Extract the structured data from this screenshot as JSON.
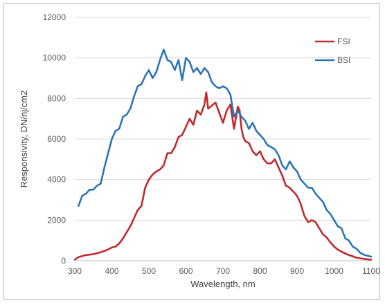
{
  "chart_data": {
    "type": "line",
    "title": "",
    "xlabel": "Wavelength, nm",
    "ylabel": "Responsivity, DN/nj/cm2",
    "xlim": [
      300,
      1100
    ],
    "ylim": [
      0,
      12000
    ],
    "xticks": [
      300,
      400,
      500,
      600,
      700,
      800,
      900,
      1000,
      1100
    ],
    "yticks": [
      0,
      2000,
      4000,
      6000,
      8000,
      10000,
      12000
    ],
    "grid": "horizontal",
    "legend_position": "top-right",
    "series": [
      {
        "name": "FSI",
        "color": "#c0282d",
        "x": [
          300,
          310,
          320,
          330,
          340,
          350,
          360,
          370,
          380,
          390,
          400,
          410,
          420,
          430,
          440,
          450,
          460,
          470,
          480,
          490,
          500,
          510,
          520,
          530,
          540,
          550,
          555,
          560,
          570,
          580,
          590,
          600,
          610,
          620,
          630,
          640,
          650,
          655,
          660,
          670,
          680,
          690,
          700,
          710,
          720,
          730,
          740,
          745,
          750,
          755,
          760,
          770,
          780,
          790,
          800,
          810,
          820,
          830,
          840,
          850,
          860,
          870,
          880,
          890,
          900,
          910,
          920,
          930,
          940,
          950,
          960,
          970,
          980,
          990,
          1000,
          1010,
          1020,
          1030,
          1040,
          1050,
          1060,
          1070,
          1080,
          1090,
          1100
        ],
        "values": [
          50,
          180,
          230,
          280,
          300,
          320,
          370,
          420,
          480,
          560,
          650,
          700,
          850,
          1100,
          1400,
          1700,
          2100,
          2500,
          2700,
          3600,
          4000,
          4250,
          4400,
          4500,
          4700,
          5300,
          5300,
          5300,
          5600,
          6100,
          6200,
          6600,
          7000,
          6700,
          7400,
          7200,
          7700,
          8300,
          7500,
          7650,
          7800,
          7300,
          6800,
          7400,
          7700,
          6500,
          7600,
          7400,
          6500,
          6100,
          5900,
          5800,
          5400,
          5200,
          5400,
          5000,
          4800,
          4800,
          5000,
          4600,
          4200,
          3700,
          3600,
          3400,
          3200,
          2800,
          2200,
          1900,
          2000,
          1900,
          1600,
          1300,
          1150,
          900,
          700,
          550,
          450,
          350,
          280,
          220,
          150,
          120,
          90,
          70,
          50
        ]
      },
      {
        "name": "BSI",
        "color": "#2e74b5",
        "x": [
          310,
          320,
          330,
          340,
          350,
          360,
          370,
          380,
          390,
          400,
          410,
          420,
          430,
          440,
          450,
          460,
          470,
          480,
          490,
          500,
          510,
          520,
          530,
          540,
          550,
          560,
          570,
          580,
          590,
          600,
          610,
          620,
          630,
          640,
          650,
          660,
          670,
          680,
          690,
          700,
          710,
          720,
          730,
          740,
          750,
          760,
          770,
          780,
          790,
          800,
          810,
          820,
          830,
          840,
          850,
          860,
          870,
          880,
          890,
          900,
          910,
          920,
          930,
          940,
          950,
          960,
          970,
          980,
          990,
          1000,
          1010,
          1020,
          1030,
          1040,
          1050,
          1060,
          1070,
          1080,
          1090,
          1100
        ],
        "values": [
          2700,
          3200,
          3300,
          3500,
          3500,
          3700,
          3800,
          4600,
          5300,
          6000,
          6400,
          6500,
          7100,
          7200,
          7500,
          8100,
          8600,
          8700,
          9100,
          9400,
          9000,
          9300,
          9900,
          10400,
          9900,
          9800,
          9400,
          9900,
          8900,
          10000,
          9800,
          9300,
          9500,
          9200,
          9500,
          9300,
          8800,
          8600,
          8500,
          8600,
          8500,
          8200,
          7100,
          7400,
          7100,
          6900,
          6500,
          6800,
          6400,
          6200,
          6000,
          5700,
          5600,
          5500,
          5200,
          4700,
          4500,
          4900,
          4600,
          4400,
          4000,
          3800,
          3600,
          3600,
          3300,
          3100,
          2900,
          2500,
          2300,
          2000,
          1700,
          1600,
          1100,
          1000,
          700,
          600,
          400,
          300,
          250,
          200
        ]
      }
    ]
  }
}
